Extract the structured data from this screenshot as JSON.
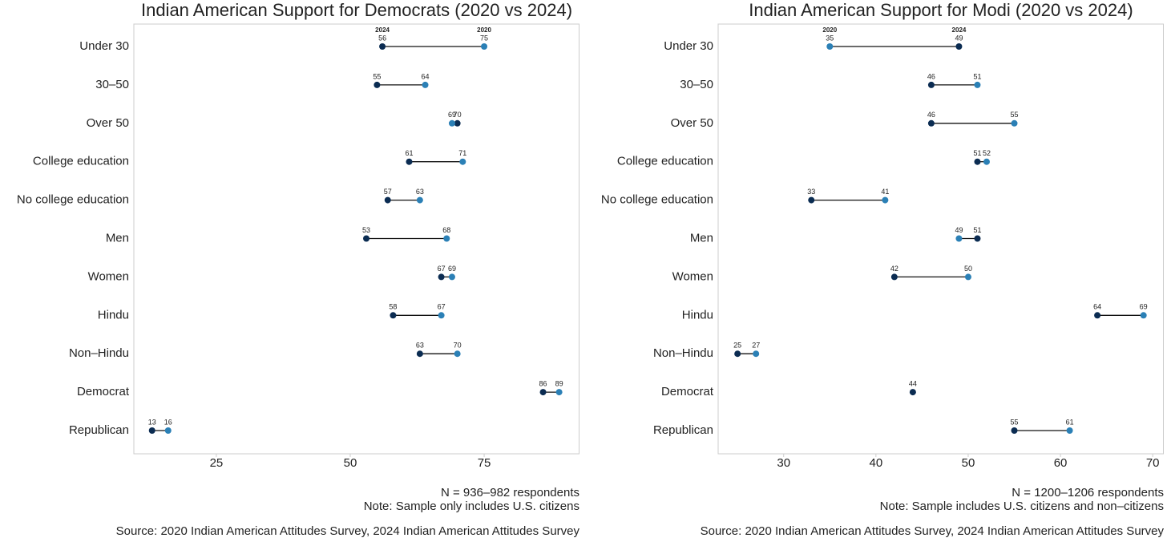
{
  "chart_data": [
    {
      "type": "dumbbell",
      "title": "Indian American Support for Democrats (2020 vs 2024)",
      "categories": [
        "Under 30",
        "30–50",
        "Over 50",
        "College education",
        "No college education",
        "Men",
        "Women",
        "Hindu",
        "Non–Hindu",
        "Democrat",
        "Republican"
      ],
      "series": [
        {
          "name": "2024",
          "color": "#0b2c52",
          "values": [
            56,
            55,
            70,
            61,
            57,
            53,
            67,
            58,
            63,
            86,
            13
          ]
        },
        {
          "name": "2020",
          "color": "#2b80b6",
          "values": [
            75,
            64,
            69,
            71,
            63,
            68,
            69,
            67,
            70,
            89,
            16
          ]
        }
      ],
      "xlim": [
        9.6,
        92.8
      ],
      "xticks": [
        25,
        50,
        75
      ],
      "notes": [
        "N = 936–982 respondents",
        "Note: Sample only includes U.S. citizens"
      ],
      "source": "Source: 2020 Indian American Attitudes Survey, 2024 Indian American Attitudes Survey"
    },
    {
      "type": "dumbbell",
      "title": "Indian American Support for Modi (2020 vs 2024)",
      "categories": [
        "Under 30",
        "30–50",
        "Over 50",
        "College education",
        "No college education",
        "Men",
        "Women",
        "Hindu",
        "Non–Hindu",
        "Democrat",
        "Republican"
      ],
      "series": [
        {
          "name": "2024",
          "color": "#0b2c52",
          "values": [
            49,
            46,
            46,
            51,
            33,
            51,
            42,
            64,
            25,
            44,
            55
          ]
        },
        {
          "name": "2020",
          "color": "#2b80b6",
          "values": [
            35,
            51,
            55,
            52,
            41,
            49,
            50,
            69,
            27,
            null,
            61
          ]
        }
      ],
      "xlim": [
        22.9,
        71.2
      ],
      "xticks": [
        30,
        40,
        50,
        60,
        70
      ],
      "notes": [
        "N = 1200–1206 respondents",
        "Note: Sample includes U.S. citizens and non–citizens"
      ],
      "source": "Source: 2020 Indian American Attitudes Survey, 2024 Indian American Attitudes Survey"
    }
  ]
}
